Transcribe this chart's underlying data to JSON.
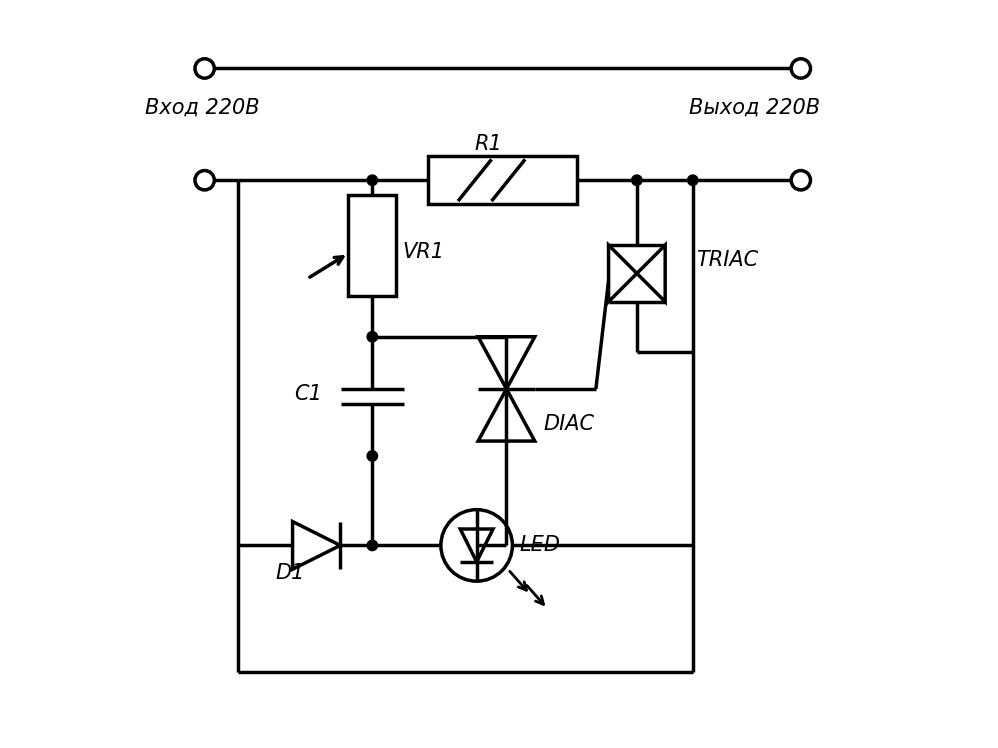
{
  "bg_color": "#ffffff",
  "lc": "#000000",
  "lw": 2.5,
  "labels": {
    "vhod": "Вход 220В",
    "vyhod": "Выход 220В",
    "R1": "R1",
    "VR1": "VR1",
    "C1": "C1",
    "D1": "D1",
    "DIAC": "DIAC",
    "TRIAC": "TRIAC",
    "LED": "LED"
  },
  "fs": 15,
  "dot_r": 0.07,
  "oc_r": 0.13
}
